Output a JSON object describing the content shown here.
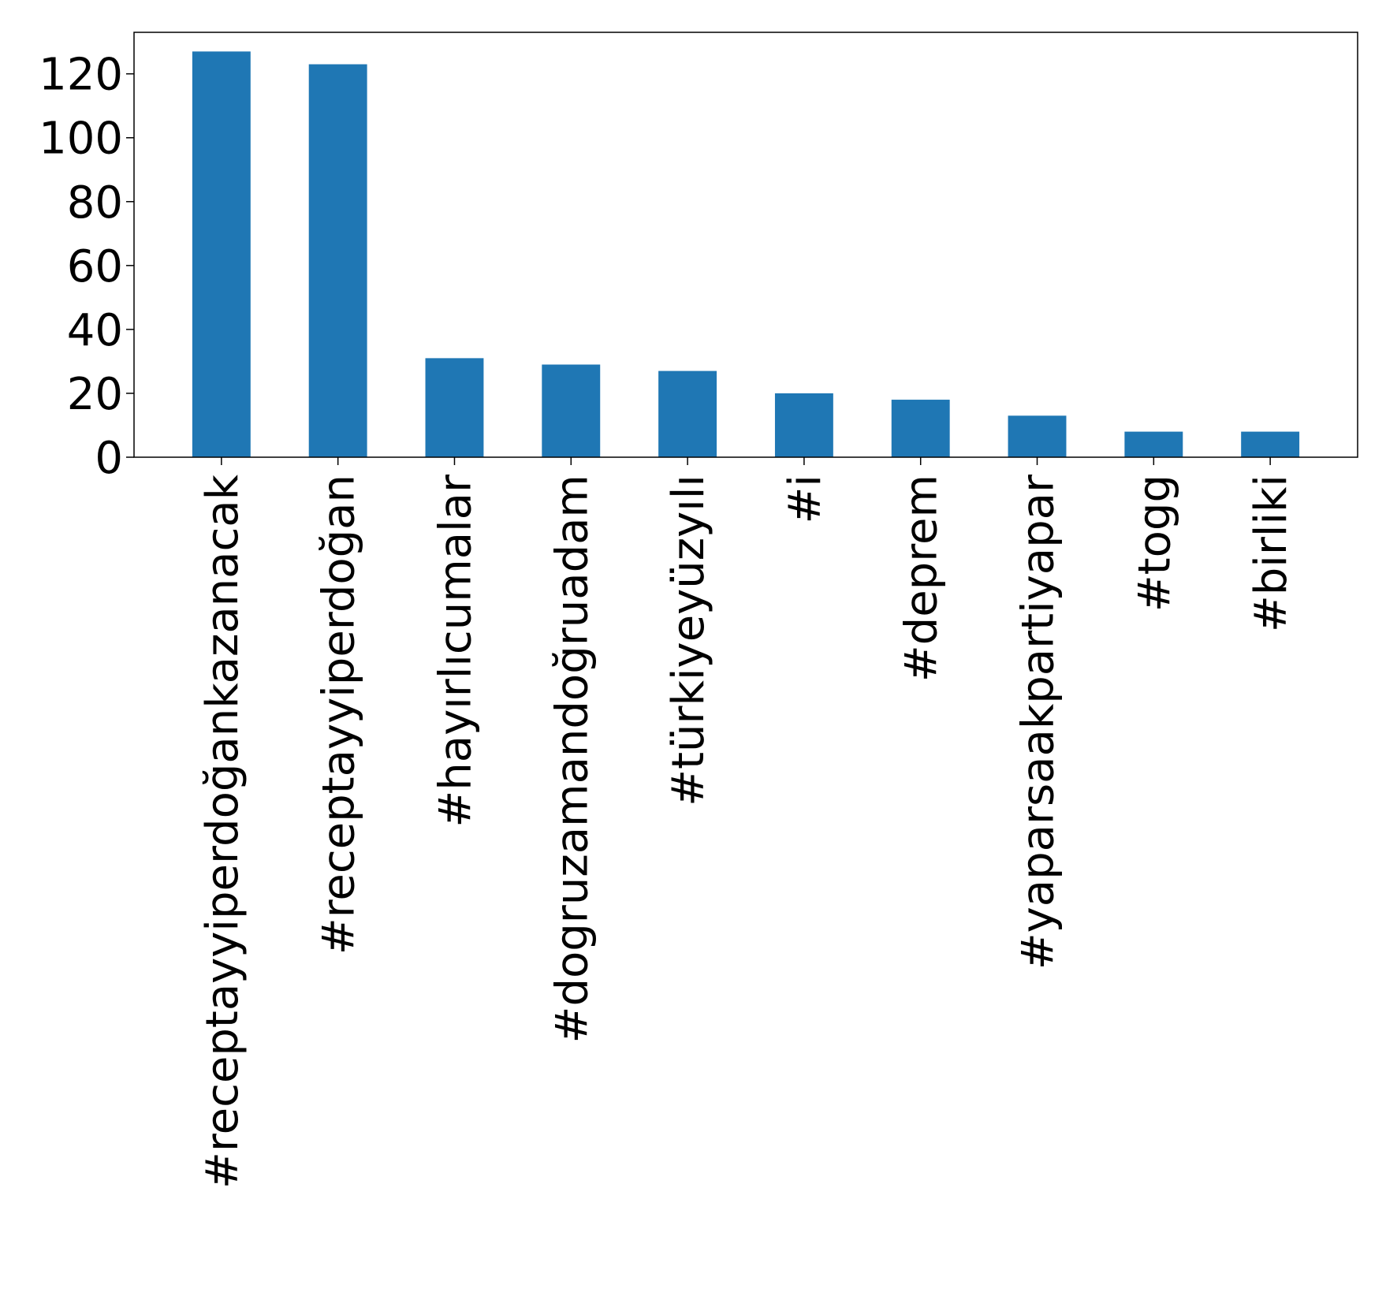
{
  "chart_data": {
    "type": "bar",
    "categories": [
      "#receptayyiperdoğankazanacak",
      "#receptayyiperdoğan",
      "#hayırlıcumalar",
      "#dogruzamandoğruadam",
      "#türkiyeyüzyılı",
      "#i",
      "#deprem",
      "#yaparsaakpartiyapar",
      "#togg",
      "#birliki"
    ],
    "values": [
      127,
      123,
      31,
      29,
      27,
      20,
      18,
      13,
      8,
      8
    ],
    "ylim": [
      0,
      133
    ],
    "yticks": [
      0,
      20,
      40,
      60,
      80,
      100,
      120
    ],
    "ytick_labels": [
      "0",
      "20",
      "40",
      "60",
      "80",
      "100",
      "120"
    ],
    "title": "",
    "xlabel": "",
    "ylabel": "",
    "bar_color": "#1f77b4",
    "grid": false,
    "legend": "none"
  }
}
